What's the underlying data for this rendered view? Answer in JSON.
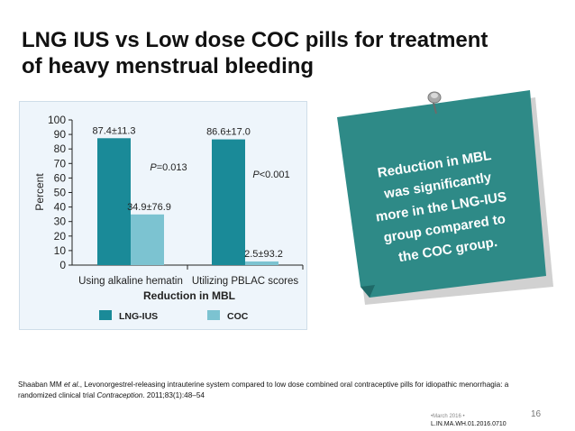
{
  "slide": {
    "title_line1": "LNG IUS vs Low dose COC pills for treatment",
    "title_line2": "of heavy menstrual bleeding",
    "note_lines": [
      "Reduction in MBL",
      "was significantly",
      "more in the LNG-IUS",
      "group compared to",
      "the COC group."
    ],
    "reference_plain": "Shaaban MM ",
    "reference_etal": "et al",
    "reference_mid": "., Levonorgestrel-releasing intrauterine system compared to low dose combined oral contraceptive pills for idiopathic menorrhagia: a randomized clinical trial ",
    "reference_journal": "Contraception",
    "reference_end": ". 2011;83(1):48–54",
    "page_number": "16",
    "footer_date": "•March 2016 •",
    "footer_code": "L.IN.MA.WH.01.2016.0710"
  },
  "colors": {
    "lng_ius": "#1a8a98",
    "coc": "#7cc3d1",
    "note_bg": "#2e8a87",
    "chart_bg": "#eef5fb"
  },
  "chart_data": {
    "type": "bar",
    "categories": [
      "Using alkaline hematin",
      "Utilizing PBLAC scores"
    ],
    "series": [
      {
        "name": "LNG-IUS",
        "values": [
          87.4,
          86.6
        ],
        "labels": [
          "87.4±11.3",
          "86.6±17.0"
        ]
      },
      {
        "name": "COC",
        "values": [
          34.9,
          2.5
        ],
        "labels": [
          "34.9±76.9",
          "2.5±93.2"
        ]
      }
    ],
    "p_values": [
      "P=0.013",
      "P<0.001"
    ],
    "xlabel": "Reduction in MBL",
    "ylabel": "Percent",
    "ylim": [
      0,
      100
    ],
    "yticks": [
      0,
      10,
      20,
      30,
      40,
      50,
      60,
      70,
      80,
      90,
      100
    ],
    "legend": [
      "LNG-IUS",
      "COC"
    ],
    "legend_position": "bottom"
  }
}
